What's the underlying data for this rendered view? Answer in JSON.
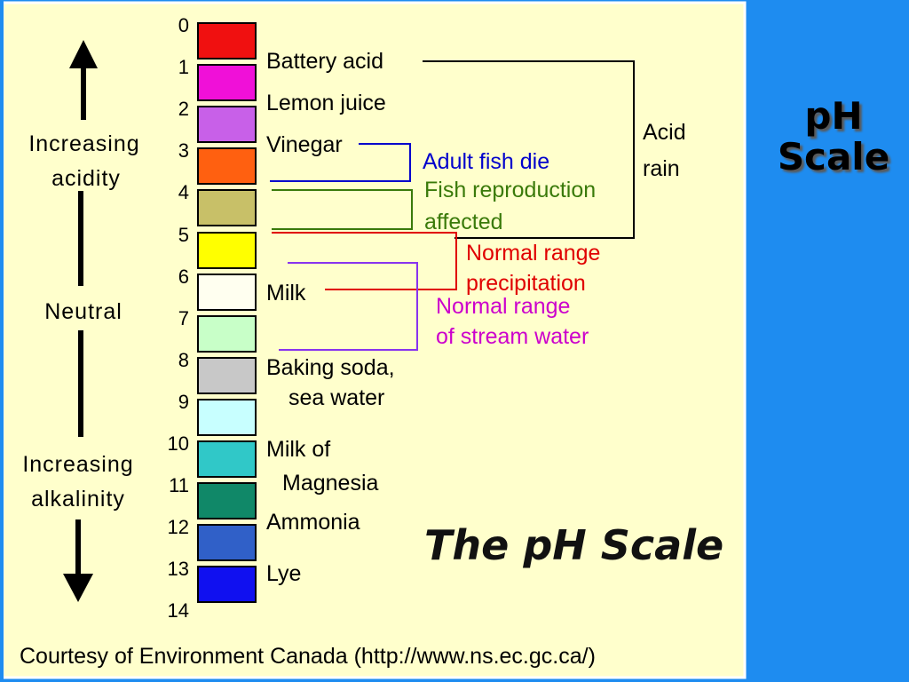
{
  "slide_title": [
    "pH",
    "Scale"
  ],
  "diagram": {
    "scale_numbers": [
      "0",
      "1",
      "2",
      "3",
      "4",
      "5",
      "6",
      "7",
      "8",
      "9",
      "10",
      "11",
      "12",
      "13",
      "14"
    ],
    "swatch_colors": [
      "#f01010",
      "#f010d8",
      "#c860e8",
      "#ff6010",
      "#c8c068",
      "#ffff00",
      "#fffff0",
      "#c8ffc8",
      "#c8c8c8",
      "#c8ffff",
      "#30c8c8",
      "#108868",
      "#3060c8",
      "#1010f0"
    ],
    "substances": {
      "battery_acid": "Battery acid",
      "lemon_juice": "Lemon juice",
      "vinegar": "Vinegar",
      "milk": "Milk",
      "baking_soda": [
        "Baking soda,",
        "sea water"
      ],
      "milk_of_magnesia": [
        "Milk of",
        "Magnesia"
      ],
      "ammonia": "Ammonia",
      "lye": "Lye"
    },
    "annotations": {
      "acid_rain": [
        "Acid",
        "rain"
      ],
      "adult_fish_die": "Adult fish die",
      "fish_reproduction": [
        "Fish reproduction",
        "affected"
      ],
      "normal_precipitation": [
        "Normal range",
        "precipitation"
      ],
      "normal_stream_water": [
        "Normal range",
        "of stream water"
      ]
    },
    "side_labels": {
      "increasing_acidity": [
        "Increasing",
        "acidity"
      ],
      "neutral": "Neutral",
      "increasing_alkalinity": [
        "Increasing",
        "alkalinity"
      ]
    },
    "heading": "The pH Scale",
    "credit": "Courtesy of Environment Canada (http://www.ns.ec.gc.ca/)",
    "colors": {
      "panel_background": "#ffffcc",
      "slide_background": "#1e8cf0",
      "fish_die_line": "#0000cc",
      "reproduction_line": "#3a7a0a",
      "precipitation_line": "#e00000",
      "stream_water_line": "#8833ee"
    }
  }
}
